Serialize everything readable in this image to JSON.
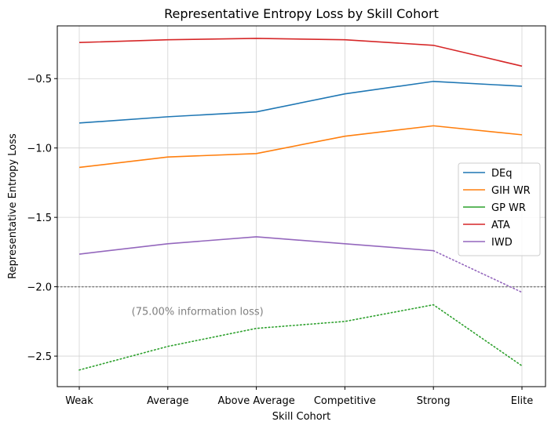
{
  "chart_data": {
    "type": "line",
    "title": "Representative Entropy Loss by Skill Cohort",
    "xlabel": "Skill Cohort",
    "ylabel": "Representative Entropy Loss",
    "categories": [
      "Weak",
      "Average",
      "Above Average",
      "Competitive",
      "Strong",
      "Elite"
    ],
    "ylim": [
      -2.72,
      -0.12
    ],
    "yticks": [
      -0.5,
      -1.0,
      -1.5,
      -2.0,
      -2.5
    ],
    "ytick_labels": [
      "−0.5",
      "−1.0",
      "−1.5",
      "−2.0",
      "−2.5"
    ],
    "grid": true,
    "legend_position": "center-right",
    "series": [
      {
        "name": "DEq",
        "color": "#1f77b4",
        "values": [
          -0.82,
          -0.775,
          -0.74,
          -0.61,
          -0.52,
          -0.555
        ]
      },
      {
        "name": "GIH WR",
        "color": "#ff7f0e",
        "values": [
          -1.14,
          -1.065,
          -1.04,
          -0.915,
          -0.84,
          -0.905
        ]
      },
      {
        "name": "GP WR",
        "color": "#2ca02c",
        "values": [
          -2.6,
          -2.43,
          -2.3,
          -2.25,
          -2.13,
          -2.57
        ],
        "style": "dotted"
      },
      {
        "name": "ATA",
        "color": "#d62728",
        "values": [
          -0.24,
          -0.22,
          -0.21,
          -0.22,
          -0.26,
          -0.41
        ]
      },
      {
        "name": "IWD",
        "color": "#9467bd",
        "values": [
          -1.765,
          -1.69,
          -1.64,
          -1.69,
          -1.74,
          -2.04
        ],
        "dotted_last_segment": true
      }
    ],
    "reference_line": {
      "y": -2.0,
      "color": "#808080",
      "style": "dotted"
    },
    "annotation": {
      "text": "(75.00% information loss)",
      "x": 1.3,
      "y": -2.18
    }
  }
}
